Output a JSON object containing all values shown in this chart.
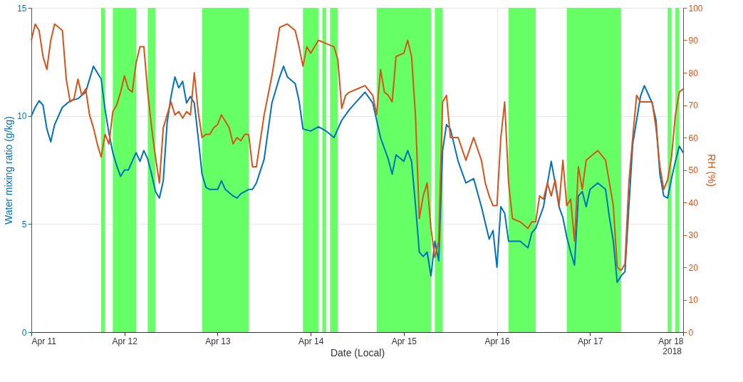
{
  "chart_data": {
    "type": "line",
    "xlabel": "Date (Local)",
    "ylabel": "Water mixing ratio (g/kg)",
    "y2label": "RH (%)",
    "xlim": [
      "2018-04-11T00:00",
      "2018-04-18T00:00"
    ],
    "xticks": [
      {
        "value": "2018-04-11T00:00",
        "label": "Apr 11"
      },
      {
        "value": "2018-04-12T00:00",
        "label": "Apr 12"
      },
      {
        "value": "2018-04-13T00:00",
        "label": "Apr 13"
      },
      {
        "value": "2018-04-14T00:00",
        "label": "Apr 14"
      },
      {
        "value": "2018-04-15T00:00",
        "label": "Apr 15"
      },
      {
        "value": "2018-04-16T00:00",
        "label": "Apr 16"
      },
      {
        "value": "2018-04-17T00:00",
        "label": "Apr 17"
      },
      {
        "value": "2018-04-18T00:00",
        "label": "Apr 18"
      }
    ],
    "ylim": [
      0,
      15
    ],
    "yticks": [
      0,
      5,
      10,
      15
    ],
    "y2lim": [
      0,
      100
    ],
    "y2ticks": [
      0,
      10,
      20,
      30,
      40,
      50,
      60,
      70,
      80,
      90,
      100
    ],
    "grid": true,
    "line_style": "solid",
    "marker": "none",
    "annotations": [
      "2018"
    ],
    "bands": [
      {
        "axis": "x",
        "from": "2018-04-11T18:00",
        "to": "2018-04-11T19:00",
        "color": "#66ff66"
      },
      {
        "axis": "x",
        "from": "2018-04-11T21:00",
        "to": "2018-04-12T03:00",
        "color": "#66ff66"
      },
      {
        "axis": "x",
        "from": "2018-04-12T06:00",
        "to": "2018-04-12T08:00",
        "color": "#66ff66"
      },
      {
        "axis": "x",
        "from": "2018-04-12T20:00",
        "to": "2018-04-13T08:00",
        "color": "#66ff66"
      },
      {
        "axis": "x",
        "from": "2018-04-13T22:00",
        "to": "2018-04-14T02:00",
        "color": "#66ff66"
      },
      {
        "axis": "x",
        "from": "2018-04-14T03:00",
        "to": "2018-04-14T04:00",
        "color": "#66ff66"
      },
      {
        "axis": "x",
        "from": "2018-04-14T05:00",
        "to": "2018-04-14T07:00",
        "color": "#66ff66"
      },
      {
        "axis": "x",
        "from": "2018-04-14T17:00",
        "to": "2018-04-15T07:00",
        "color": "#66ff66"
      },
      {
        "axis": "x",
        "from": "2018-04-15T08:00",
        "to": "2018-04-15T10:00",
        "color": "#66ff66"
      },
      {
        "axis": "x",
        "from": "2018-04-16T03:00",
        "to": "2018-04-16T10:00",
        "color": "#66ff66"
      },
      {
        "axis": "x",
        "from": "2018-04-16T18:00",
        "to": "2018-04-17T08:00",
        "color": "#66ff66"
      },
      {
        "axis": "x",
        "from": "2018-04-17T20:00",
        "to": "2018-04-17T21:00",
        "color": "#66ff66"
      },
      {
        "axis": "x",
        "from": "2018-04-17T22:00",
        "to": "2018-04-17T23:00",
        "color": "#66ff66"
      }
    ],
    "series": [
      {
        "axis": "y",
        "color": "#0072bd",
        "x": [
          "2018-04-11T00:00",
          "2018-04-11T01:00",
          "2018-04-11T02:00",
          "2018-04-11T03:00",
          "2018-04-11T04:00",
          "2018-04-11T05:00",
          "2018-04-11T06:00",
          "2018-04-11T08:00",
          "2018-04-11T10:00",
          "2018-04-11T12:00",
          "2018-04-11T14:00",
          "2018-04-11T15:00",
          "2018-04-11T16:00",
          "2018-04-11T18:00",
          "2018-04-11T19:00",
          "2018-04-11T20:00",
          "2018-04-11T21:00",
          "2018-04-11T22:00",
          "2018-04-11T23:00",
          "2018-04-12T00:00",
          "2018-04-12T01:00",
          "2018-04-12T02:00",
          "2018-04-12T03:00",
          "2018-04-12T04:00",
          "2018-04-12T05:00",
          "2018-04-12T06:00",
          "2018-04-12T07:00",
          "2018-04-12T08:00",
          "2018-04-12T09:00",
          "2018-04-12T10:00",
          "2018-04-12T11:00",
          "2018-04-12T12:00",
          "2018-04-12T13:00",
          "2018-04-12T14:00",
          "2018-04-12T15:00",
          "2018-04-12T16:00",
          "2018-04-12T17:00",
          "2018-04-12T18:00",
          "2018-04-12T19:00",
          "2018-04-12T20:00",
          "2018-04-12T21:00",
          "2018-04-12T22:00",
          "2018-04-13T00:00",
          "2018-04-13T01:00",
          "2018-04-13T02:00",
          "2018-04-13T04:00",
          "2018-04-13T05:00",
          "2018-04-13T06:00",
          "2018-04-13T08:00",
          "2018-04-13T09:00",
          "2018-04-13T10:00",
          "2018-04-13T12:00",
          "2018-04-13T14:00",
          "2018-04-13T16:00",
          "2018-04-13T17:00",
          "2018-04-13T18:00",
          "2018-04-13T20:00",
          "2018-04-13T21:00",
          "2018-04-13T22:00",
          "2018-04-14T00:00",
          "2018-04-14T02:00",
          "2018-04-14T04:00",
          "2018-04-14T06:00",
          "2018-04-14T07:00",
          "2018-04-14T08:00",
          "2018-04-14T10:00",
          "2018-04-14T12:00",
          "2018-04-14T14:00",
          "2018-04-14T16:00",
          "2018-04-14T17:00",
          "2018-04-14T18:00",
          "2018-04-14T20:00",
          "2018-04-14T21:00",
          "2018-04-14T22:00",
          "2018-04-15T00:00",
          "2018-04-15T01:00",
          "2018-04-15T02:00",
          "2018-04-15T03:00",
          "2018-04-15T04:00",
          "2018-04-15T05:00",
          "2018-04-15T06:00",
          "2018-04-15T07:00",
          "2018-04-15T08:00",
          "2018-04-15T09:00",
          "2018-04-15T10:00",
          "2018-04-15T11:00",
          "2018-04-15T12:00",
          "2018-04-15T14:00",
          "2018-04-15T16:00",
          "2018-04-15T18:00",
          "2018-04-15T20:00",
          "2018-04-15T22:00",
          "2018-04-15T23:00",
          "2018-04-16T00:00",
          "2018-04-16T01:00",
          "2018-04-16T02:00",
          "2018-04-16T03:00",
          "2018-04-16T04:00",
          "2018-04-16T06:00",
          "2018-04-16T08:00",
          "2018-04-16T09:00",
          "2018-04-16T10:00",
          "2018-04-16T12:00",
          "2018-04-16T14:00",
          "2018-04-16T15:00",
          "2018-04-16T16:00",
          "2018-04-16T17:00",
          "2018-04-16T18:00",
          "2018-04-16T19:00",
          "2018-04-16T20:00",
          "2018-04-16T21:00",
          "2018-04-16T22:00",
          "2018-04-16T23:00",
          "2018-04-17T00:00",
          "2018-04-17T02:00",
          "2018-04-17T04:00",
          "2018-04-17T05:00",
          "2018-04-17T06:00",
          "2018-04-17T07:00",
          "2018-04-17T08:00",
          "2018-04-17T09:00",
          "2018-04-17T10:00",
          "2018-04-17T11:00",
          "2018-04-17T12:00",
          "2018-04-17T13:00",
          "2018-04-17T14:00",
          "2018-04-17T16:00",
          "2018-04-17T17:00",
          "2018-04-17T18:00",
          "2018-04-17T19:00",
          "2018-04-17T20:00",
          "2018-04-17T21:00",
          "2018-04-17T22:00",
          "2018-04-17T23:00",
          "2018-04-18T00:00"
        ],
        "values": [
          10.0,
          10.4,
          10.7,
          10.5,
          9.4,
          8.8,
          9.6,
          10.4,
          10.7,
          10.8,
          11.1,
          11.7,
          12.3,
          11.7,
          10.3,
          9.2,
          8.3,
          7.7,
          7.2,
          7.5,
          7.5,
          7.9,
          8.3,
          7.9,
          8.4,
          8.0,
          7.3,
          6.5,
          6.2,
          7.0,
          9.7,
          10.9,
          11.8,
          11.3,
          11.6,
          10.6,
          10.9,
          10.6,
          9.0,
          7.3,
          6.7,
          6.6,
          6.6,
          7.0,
          6.6,
          6.3,
          6.2,
          6.4,
          6.6,
          6.6,
          6.9,
          8.0,
          10.6,
          11.8,
          12.3,
          11.8,
          11.5,
          10.7,
          9.4,
          9.3,
          9.5,
          9.3,
          9.0,
          9.4,
          9.8,
          10.3,
          10.7,
          11.1,
          10.6,
          9.8,
          9.0,
          8.0,
          7.3,
          8.2,
          7.9,
          8.4,
          7.9,
          5.9,
          3.7,
          3.5,
          3.7,
          2.6,
          4.2,
          3.3,
          8.4,
          9.6,
          9.4,
          7.9,
          6.9,
          7.1,
          5.8,
          4.3,
          4.7,
          3.0,
          5.8,
          5.5,
          4.2,
          4.2,
          4.2,
          3.9,
          4.6,
          4.8,
          5.8,
          7.9,
          6.9,
          5.8,
          5.3,
          4.4,
          3.7,
          3.1,
          6.3,
          6.5,
          5.8,
          6.6,
          6.9,
          6.6,
          5.3,
          4.2,
          2.3,
          2.6,
          2.8,
          5.8,
          8.7,
          9.8,
          10.9,
          11.4,
          10.6,
          9.8,
          7.3,
          6.3,
          6.2,
          7.1,
          7.9,
          8.6,
          8.3
        ]
      },
      {
        "axis": "y2",
        "color": "#d95319",
        "x": [
          "2018-04-11T00:00",
          "2018-04-11T01:00",
          "2018-04-11T02:00",
          "2018-04-11T03:00",
          "2018-04-11T04:00",
          "2018-04-11T05:00",
          "2018-04-11T06:00",
          "2018-04-11T08:00",
          "2018-04-11T09:00",
          "2018-04-11T10:00",
          "2018-04-11T11:00",
          "2018-04-11T12:00",
          "2018-04-11T13:00",
          "2018-04-11T14:00",
          "2018-04-11T15:00",
          "2018-04-11T16:00",
          "2018-04-11T17:00",
          "2018-04-11T18:00",
          "2018-04-11T19:00",
          "2018-04-11T20:00",
          "2018-04-11T21:00",
          "2018-04-11T22:00",
          "2018-04-11T23:00",
          "2018-04-12T00:00",
          "2018-04-12T01:00",
          "2018-04-12T02:00",
          "2018-04-12T03:00",
          "2018-04-12T04:00",
          "2018-04-12T05:00",
          "2018-04-12T06:00",
          "2018-04-12T07:00",
          "2018-04-12T08:00",
          "2018-04-12T09:00",
          "2018-04-12T10:00",
          "2018-04-12T11:00",
          "2018-04-12T12:00",
          "2018-04-12T13:00",
          "2018-04-12T14:00",
          "2018-04-12T15:00",
          "2018-04-12T16:00",
          "2018-04-12T17:00",
          "2018-04-12T18:00",
          "2018-04-12T19:00",
          "2018-04-12T20:00",
          "2018-04-12T21:00",
          "2018-04-12T22:00",
          "2018-04-12T23:00",
          "2018-04-13T00:00",
          "2018-04-13T01:00",
          "2018-04-13T02:00",
          "2018-04-13T03:00",
          "2018-04-13T04:00",
          "2018-04-13T05:00",
          "2018-04-13T06:00",
          "2018-04-13T07:00",
          "2018-04-13T08:00",
          "2018-04-13T09:00",
          "2018-04-13T10:00",
          "2018-04-13T12:00",
          "2018-04-13T14:00",
          "2018-04-13T16:00",
          "2018-04-13T18:00",
          "2018-04-13T20:00",
          "2018-04-13T21:00",
          "2018-04-13T22:00",
          "2018-04-13T23:00",
          "2018-04-14T00:00",
          "2018-04-14T02:00",
          "2018-04-14T04:00",
          "2018-04-14T06:00",
          "2018-04-14T07:00",
          "2018-04-14T08:00",
          "2018-04-14T09:00",
          "2018-04-14T10:00",
          "2018-04-14T12:00",
          "2018-04-14T14:00",
          "2018-04-14T16:00",
          "2018-04-14T17:00",
          "2018-04-14T18:00",
          "2018-04-14T19:00",
          "2018-04-14T20:00",
          "2018-04-14T21:00",
          "2018-04-14T22:00",
          "2018-04-15T00:00",
          "2018-04-15T01:00",
          "2018-04-15T02:00",
          "2018-04-15T03:00",
          "2018-04-15T04:00",
          "2018-04-15T05:00",
          "2018-04-15T06:00",
          "2018-04-15T07:00",
          "2018-04-15T08:00",
          "2018-04-15T09:00",
          "2018-04-15T10:00",
          "2018-04-15T11:00",
          "2018-04-15T12:00",
          "2018-04-15T14:00",
          "2018-04-15T16:00",
          "2018-04-15T18:00",
          "2018-04-15T20:00",
          "2018-04-15T21:00",
          "2018-04-15T22:00",
          "2018-04-15T23:00",
          "2018-04-16T00:00",
          "2018-04-16T01:00",
          "2018-04-16T02:00",
          "2018-04-16T03:00",
          "2018-04-16T04:00",
          "2018-04-16T06:00",
          "2018-04-16T08:00",
          "2018-04-16T09:00",
          "2018-04-16T10:00",
          "2018-04-16T11:00",
          "2018-04-16T12:00",
          "2018-04-16T13:00",
          "2018-04-16T14:00",
          "2018-04-16T15:00",
          "2018-04-16T16:00",
          "2018-04-16T17:00",
          "2018-04-16T18:00",
          "2018-04-16T19:00",
          "2018-04-16T20:00",
          "2018-04-16T21:00",
          "2018-04-16T22:00",
          "2018-04-16T23:00",
          "2018-04-17T00:00",
          "2018-04-17T02:00",
          "2018-04-17T04:00",
          "2018-04-17T05:00",
          "2018-04-17T06:00",
          "2018-04-17T07:00",
          "2018-04-17T08:00",
          "2018-04-17T09:00",
          "2018-04-17T10:00",
          "2018-04-17T11:00",
          "2018-04-17T12:00",
          "2018-04-17T13:00",
          "2018-04-17T14:00",
          "2018-04-17T16:00",
          "2018-04-17T17:00",
          "2018-04-17T18:00",
          "2018-04-17T19:00",
          "2018-04-17T20:00",
          "2018-04-17T21:00",
          "2018-04-17T22:00",
          "2018-04-17T23:00",
          "2018-04-18T00:00"
        ],
        "values": [
          90,
          95,
          93,
          85,
          81,
          90,
          95,
          93,
          78,
          71,
          72,
          78,
          73,
          75,
          67,
          63,
          58,
          54,
          61,
          58,
          68,
          70,
          74,
          79,
          75,
          74,
          83,
          88,
          88,
          74,
          63,
          54,
          46,
          63,
          67,
          71,
          67,
          68,
          66,
          68,
          67,
          80,
          68,
          60,
          61,
          61,
          63,
          64,
          67,
          65,
          63,
          58,
          60,
          59,
          61,
          61,
          51,
          51,
          67,
          79,
          94,
          95,
          93,
          88,
          82,
          88,
          86,
          90,
          89,
          88,
          84,
          69,
          73,
          74,
          75,
          76,
          73,
          67,
          81,
          74,
          73,
          71,
          85,
          86,
          90,
          85,
          67,
          35,
          42,
          46,
          32,
          23,
          28,
          71,
          73,
          60,
          60,
          53,
          60,
          53,
          46,
          42,
          39,
          39,
          60,
          71,
          46,
          35,
          34,
          32,
          34,
          34,
          42,
          41,
          46,
          42,
          47,
          39,
          53,
          39,
          41,
          28,
          51,
          44,
          53,
          54,
          56,
          53,
          46,
          39,
          20,
          19,
          21,
          46,
          60,
          73,
          71,
          71,
          71,
          63,
          51,
          44,
          47,
          54,
          67,
          74,
          75
        ]
      }
    ]
  }
}
